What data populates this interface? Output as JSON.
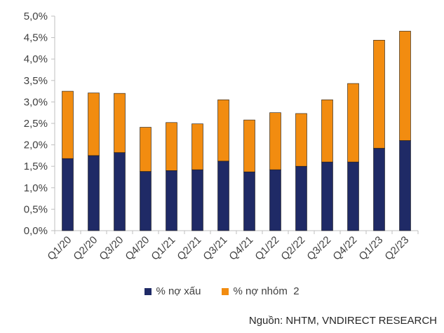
{
  "chart_data": {
    "type": "bar",
    "stacked": true,
    "title": "",
    "xlabel": "",
    "ylabel": "",
    "categories": [
      "Q1/20",
      "Q2/20",
      "Q3/20",
      "Q4/20",
      "Q1/21",
      "Q2/21",
      "Q3/21",
      "Q4/21",
      "Q1/22",
      "Q2/22",
      "Q3/22",
      "Q4/22",
      "Q1/23",
      "Q2/23"
    ],
    "series": [
      {
        "name": "% nợ xấu",
        "color": "#1f2a66",
        "values": [
          1.68,
          1.75,
          1.82,
          1.38,
          1.4,
          1.42,
          1.62,
          1.37,
          1.42,
          1.5,
          1.6,
          1.6,
          1.92,
          2.1
        ]
      },
      {
        "name": "% nợ nhóm  2",
        "color": "#f28c10",
        "values": [
          1.57,
          1.46,
          1.38,
          1.03,
          1.12,
          1.07,
          1.43,
          1.21,
          1.33,
          1.23,
          1.45,
          1.83,
          2.52,
          2.55
        ]
      }
    ],
    "ylim": [
      0,
      5
    ],
    "yticks": [
      "0,0%",
      "0,5%",
      "1,0%",
      "1,5%",
      "2,0%",
      "2,5%",
      "3,0%",
      "3,5%",
      "4,0%",
      "4,5%",
      "5,0%"
    ],
    "grid": false,
    "legend_position": "bottom"
  },
  "source_note": "Nguồn: NHTM, VNDIRECT RESEARCH"
}
